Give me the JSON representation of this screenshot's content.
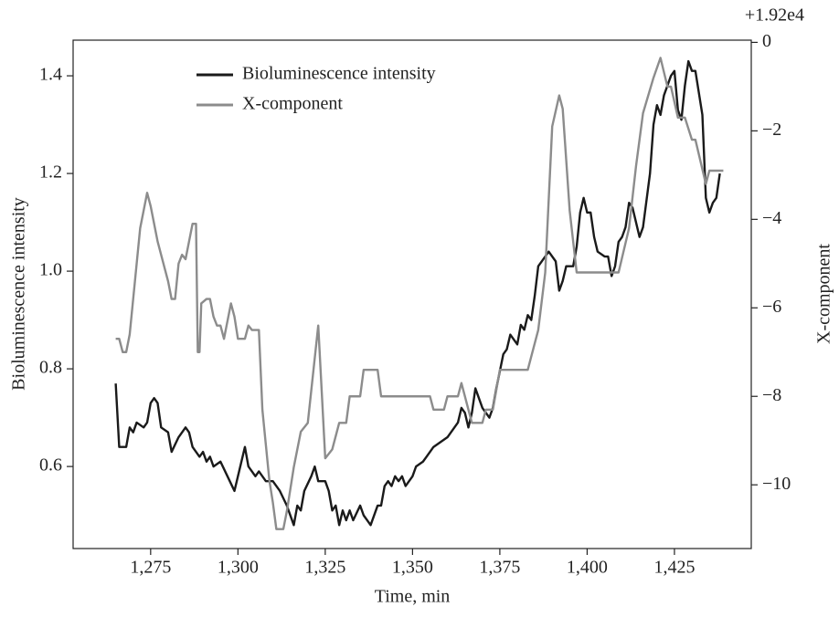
{
  "chart_data": {
    "type": "line",
    "xlabel": "Time, min",
    "ylabel": "Bioluminescence intensity",
    "y2label": "X-component",
    "y2_offset_label": "+1.92e4",
    "xlim": [
      1252.8,
      1447
    ],
    "ylim": [
      0.432,
      1.473
    ],
    "y2lim": [
      -11.44,
      0.05
    ],
    "xticks": [
      {
        "value": 1275,
        "label": "1,275"
      },
      {
        "value": 1300,
        "label": "1,300"
      },
      {
        "value": 1325,
        "label": "1,325"
      },
      {
        "value": 1350,
        "label": "1,350"
      },
      {
        "value": 1375,
        "label": "1,375"
      },
      {
        "value": 1400,
        "label": "1,400"
      },
      {
        "value": 1425,
        "label": "1,425"
      }
    ],
    "yticks": [
      0.6,
      0.8,
      {
        "value": 1,
        "label": "1.0"
      },
      1.2,
      1.4
    ],
    "y2ticks": [
      {
        "value": -10,
        "label": "−10"
      },
      {
        "value": -8,
        "label": "−8"
      },
      {
        "value": -6,
        "label": "−6"
      },
      {
        "value": -4,
        "label": "−4"
      },
      {
        "value": -2,
        "label": "−2"
      },
      0
    ],
    "legend": "upper left",
    "series": [
      {
        "name": "Bioluminescence intensity",
        "color": "#1a1a1a",
        "axis": "y",
        "x": [
          1265,
          1266,
          1268,
          1269,
          1270,
          1271,
          1273,
          1274,
          1275,
          1276,
          1277,
          1278,
          1280,
          1281,
          1283,
          1285,
          1286,
          1287,
          1289,
          1290,
          1291,
          1292,
          1293,
          1295,
          1297,
          1299,
          1300,
          1302,
          1303,
          1305,
          1306,
          1308,
          1310,
          1312,
          1314,
          1316,
          1317,
          1318,
          1319,
          1321,
          1322,
          1323,
          1325,
          1326,
          1327,
          1328,
          1329,
          1330,
          1331,
          1332,
          1333,
          1335,
          1336,
          1337,
          1338,
          1340,
          1341,
          1342,
          1343,
          1344,
          1345,
          1346,
          1347,
          1348,
          1350,
          1351,
          1353,
          1354,
          1356,
          1358,
          1360,
          1362,
          1363,
          1364,
          1365,
          1366,
          1367,
          1368,
          1369,
          1370,
          1372,
          1373,
          1374,
          1376,
          1377,
          1378,
          1380,
          1381,
          1382,
          1383,
          1384,
          1385,
          1386,
          1388,
          1389,
          1391,
          1392,
          1393,
          1394,
          1396,
          1397,
          1398,
          1399,
          1400,
          1401,
          1402,
          1403,
          1405,
          1406,
          1407,
          1408,
          1409,
          1410,
          1411,
          1412,
          1413,
          1414,
          1415,
          1416,
          1418,
          1419,
          1420,
          1421,
          1422,
          1423,
          1424,
          1425,
          1426,
          1427,
          1428,
          1429,
          1430,
          1431,
          1433,
          1434,
          1435,
          1436,
          1437,
          1438
        ],
        "values": [
          0.77,
          0.64,
          0.64,
          0.68,
          0.67,
          0.69,
          0.68,
          0.69,
          0.73,
          0.74,
          0.73,
          0.68,
          0.67,
          0.63,
          0.66,
          0.68,
          0.67,
          0.64,
          0.62,
          0.63,
          0.61,
          0.62,
          0.6,
          0.61,
          0.58,
          0.55,
          0.58,
          0.64,
          0.6,
          0.58,
          0.59,
          0.57,
          0.57,
          0.55,
          0.52,
          0.48,
          0.52,
          0.51,
          0.55,
          0.58,
          0.6,
          0.57,
          0.57,
          0.55,
          0.51,
          0.52,
          0.48,
          0.51,
          0.49,
          0.51,
          0.49,
          0.52,
          0.5,
          0.49,
          0.48,
          0.52,
          0.52,
          0.56,
          0.57,
          0.56,
          0.58,
          0.57,
          0.58,
          0.56,
          0.58,
          0.6,
          0.61,
          0.62,
          0.64,
          0.65,
          0.66,
          0.68,
          0.69,
          0.72,
          0.71,
          0.68,
          0.71,
          0.76,
          0.74,
          0.72,
          0.7,
          0.72,
          0.76,
          0.83,
          0.84,
          0.87,
          0.85,
          0.89,
          0.88,
          0.91,
          0.9,
          0.95,
          1.01,
          1.03,
          1.04,
          1.02,
          0.96,
          0.98,
          1.01,
          1.01,
          1.05,
          1.12,
          1.15,
          1.12,
          1.12,
          1.07,
          1.04,
          1.03,
          1.03,
          0.99,
          1.01,
          1.06,
          1.07,
          1.09,
          1.14,
          1.13,
          1.1,
          1.07,
          1.09,
          1.2,
          1.3,
          1.34,
          1.32,
          1.36,
          1.38,
          1.4,
          1.41,
          1.33,
          1.31,
          1.38,
          1.43,
          1.41,
          1.41,
          1.32,
          1.15,
          1.12,
          1.14,
          1.15,
          1.2
        ]
      },
      {
        "name": "X-component",
        "color": "#8c8c8c",
        "axis": "y2",
        "x": [
          1265,
          1266,
          1267,
          1268,
          1269,
          1271,
          1272,
          1273,
          1274,
          1275,
          1277,
          1279,
          1280,
          1281,
          1282,
          1283,
          1284,
          1285,
          1286,
          1287,
          1288,
          1288.5,
          1289,
          1289.5,
          1291,
          1292,
          1293,
          1294,
          1295,
          1296,
          1297,
          1298,
          1299,
          1300,
          1302,
          1303,
          1304,
          1306,
          1307,
          1309,
          1310,
          1311,
          1313,
          1314,
          1316,
          1318,
          1320,
          1323,
          1325,
          1327,
          1329,
          1331,
          1332,
          1335,
          1336,
          1340,
          1341,
          1355,
          1356,
          1359,
          1360,
          1363,
          1364,
          1365,
          1367,
          1370,
          1371,
          1373,
          1375,
          1383,
          1386,
          1388,
          1390,
          1392,
          1393,
          1395,
          1397,
          1409,
          1412,
          1414,
          1416,
          1419,
          1421,
          1423,
          1424,
          1426,
          1428,
          1430,
          1431,
          1434,
          1435,
          1439
        ],
        "values": [
          -6.7,
          -6.7,
          -7,
          -7,
          -6.6,
          -5,
          -4.2,
          -3.8,
          -3.4,
          -3.7,
          -4.5,
          -5.1,
          -5.4,
          -5.8,
          -5.8,
          -5,
          -4.8,
          -4.9,
          -4.5,
          -4.1,
          -4.1,
          -7,
          -7,
          -5.9,
          -5.8,
          -5.8,
          -6.2,
          -6.4,
          -6.4,
          -6.7,
          -6.3,
          -5.9,
          -6.2,
          -6.7,
          -6.7,
          -6.4,
          -6.5,
          -6.5,
          -8.3,
          -9.9,
          -10.4,
          -11,
          -11,
          -10.6,
          -9.6,
          -8.8,
          -8.6,
          -6.4,
          -9.4,
          -9.2,
          -8.6,
          -8.6,
          -8,
          -8,
          -7.4,
          -7.4,
          -8,
          -8,
          -8.3,
          -8.3,
          -8,
          -8,
          -7.7,
          -8,
          -8.6,
          -8.6,
          -8.3,
          -8.3,
          -7.4,
          -7.4,
          -6.5,
          -5.2,
          -1.9,
          -1.2,
          -1.5,
          -3.8,
          -5.2,
          -5.2,
          -4.2,
          -2.8,
          -1.6,
          -0.8,
          -0.35,
          -1,
          -1,
          -1.7,
          -1.7,
          -2.2,
          -2.2,
          -3.2,
          -2.9,
          -2.9
        ]
      }
    ]
  }
}
